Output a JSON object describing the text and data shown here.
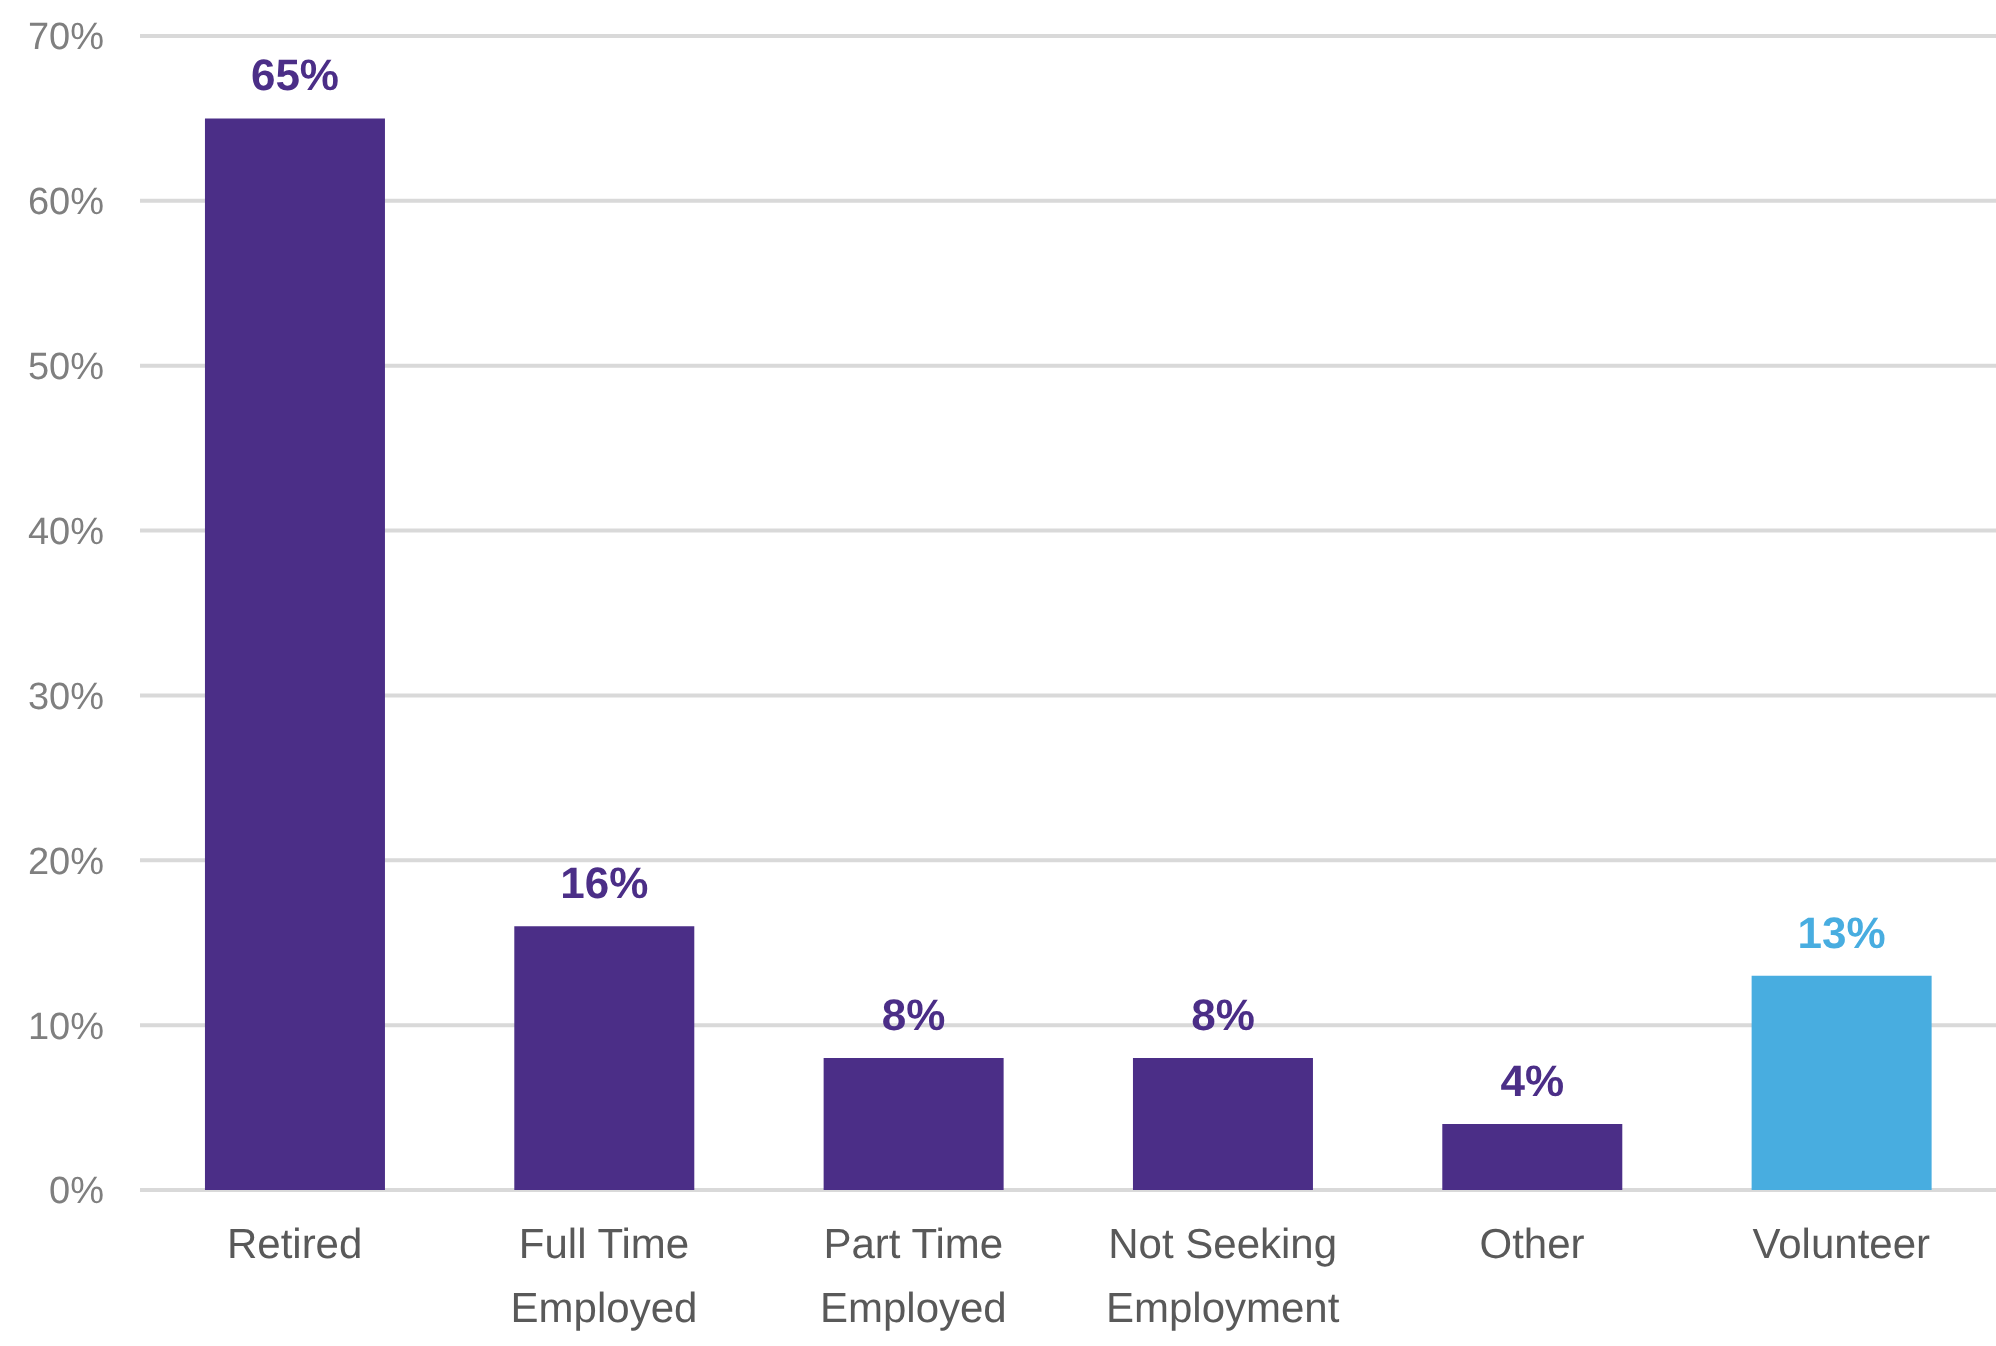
{
  "chart_data": {
    "type": "bar",
    "categories": [
      "Retired",
      "Full Time Employed",
      "Part Time Employed",
      "Not Seeking Employment",
      "Other",
      "Volunteer"
    ],
    "values": [
      65,
      16,
      8,
      8,
      4,
      13
    ],
    "value_labels": [
      "65%",
      "16%",
      "8%",
      "8%",
      "4%",
      "13%"
    ],
    "colors": [
      "#4b2e87",
      "#4b2e87",
      "#4b2e87",
      "#4b2e87",
      "#4b2e87",
      "#48ade0"
    ],
    "ylim": [
      0,
      70
    ],
    "yticks": [
      {
        "value": 0,
        "label": "0%"
      },
      {
        "value": 10,
        "label": "10%"
      },
      {
        "value": 20,
        "label": "20%"
      },
      {
        "value": 30,
        "label": "30%"
      },
      {
        "value": 40,
        "label": "40%"
      },
      {
        "value": 50,
        "label": "50%"
      },
      {
        "value": 60,
        "label": "60%"
      },
      {
        "value": 70,
        "label": "70%"
      }
    ],
    "grid": "y"
  }
}
